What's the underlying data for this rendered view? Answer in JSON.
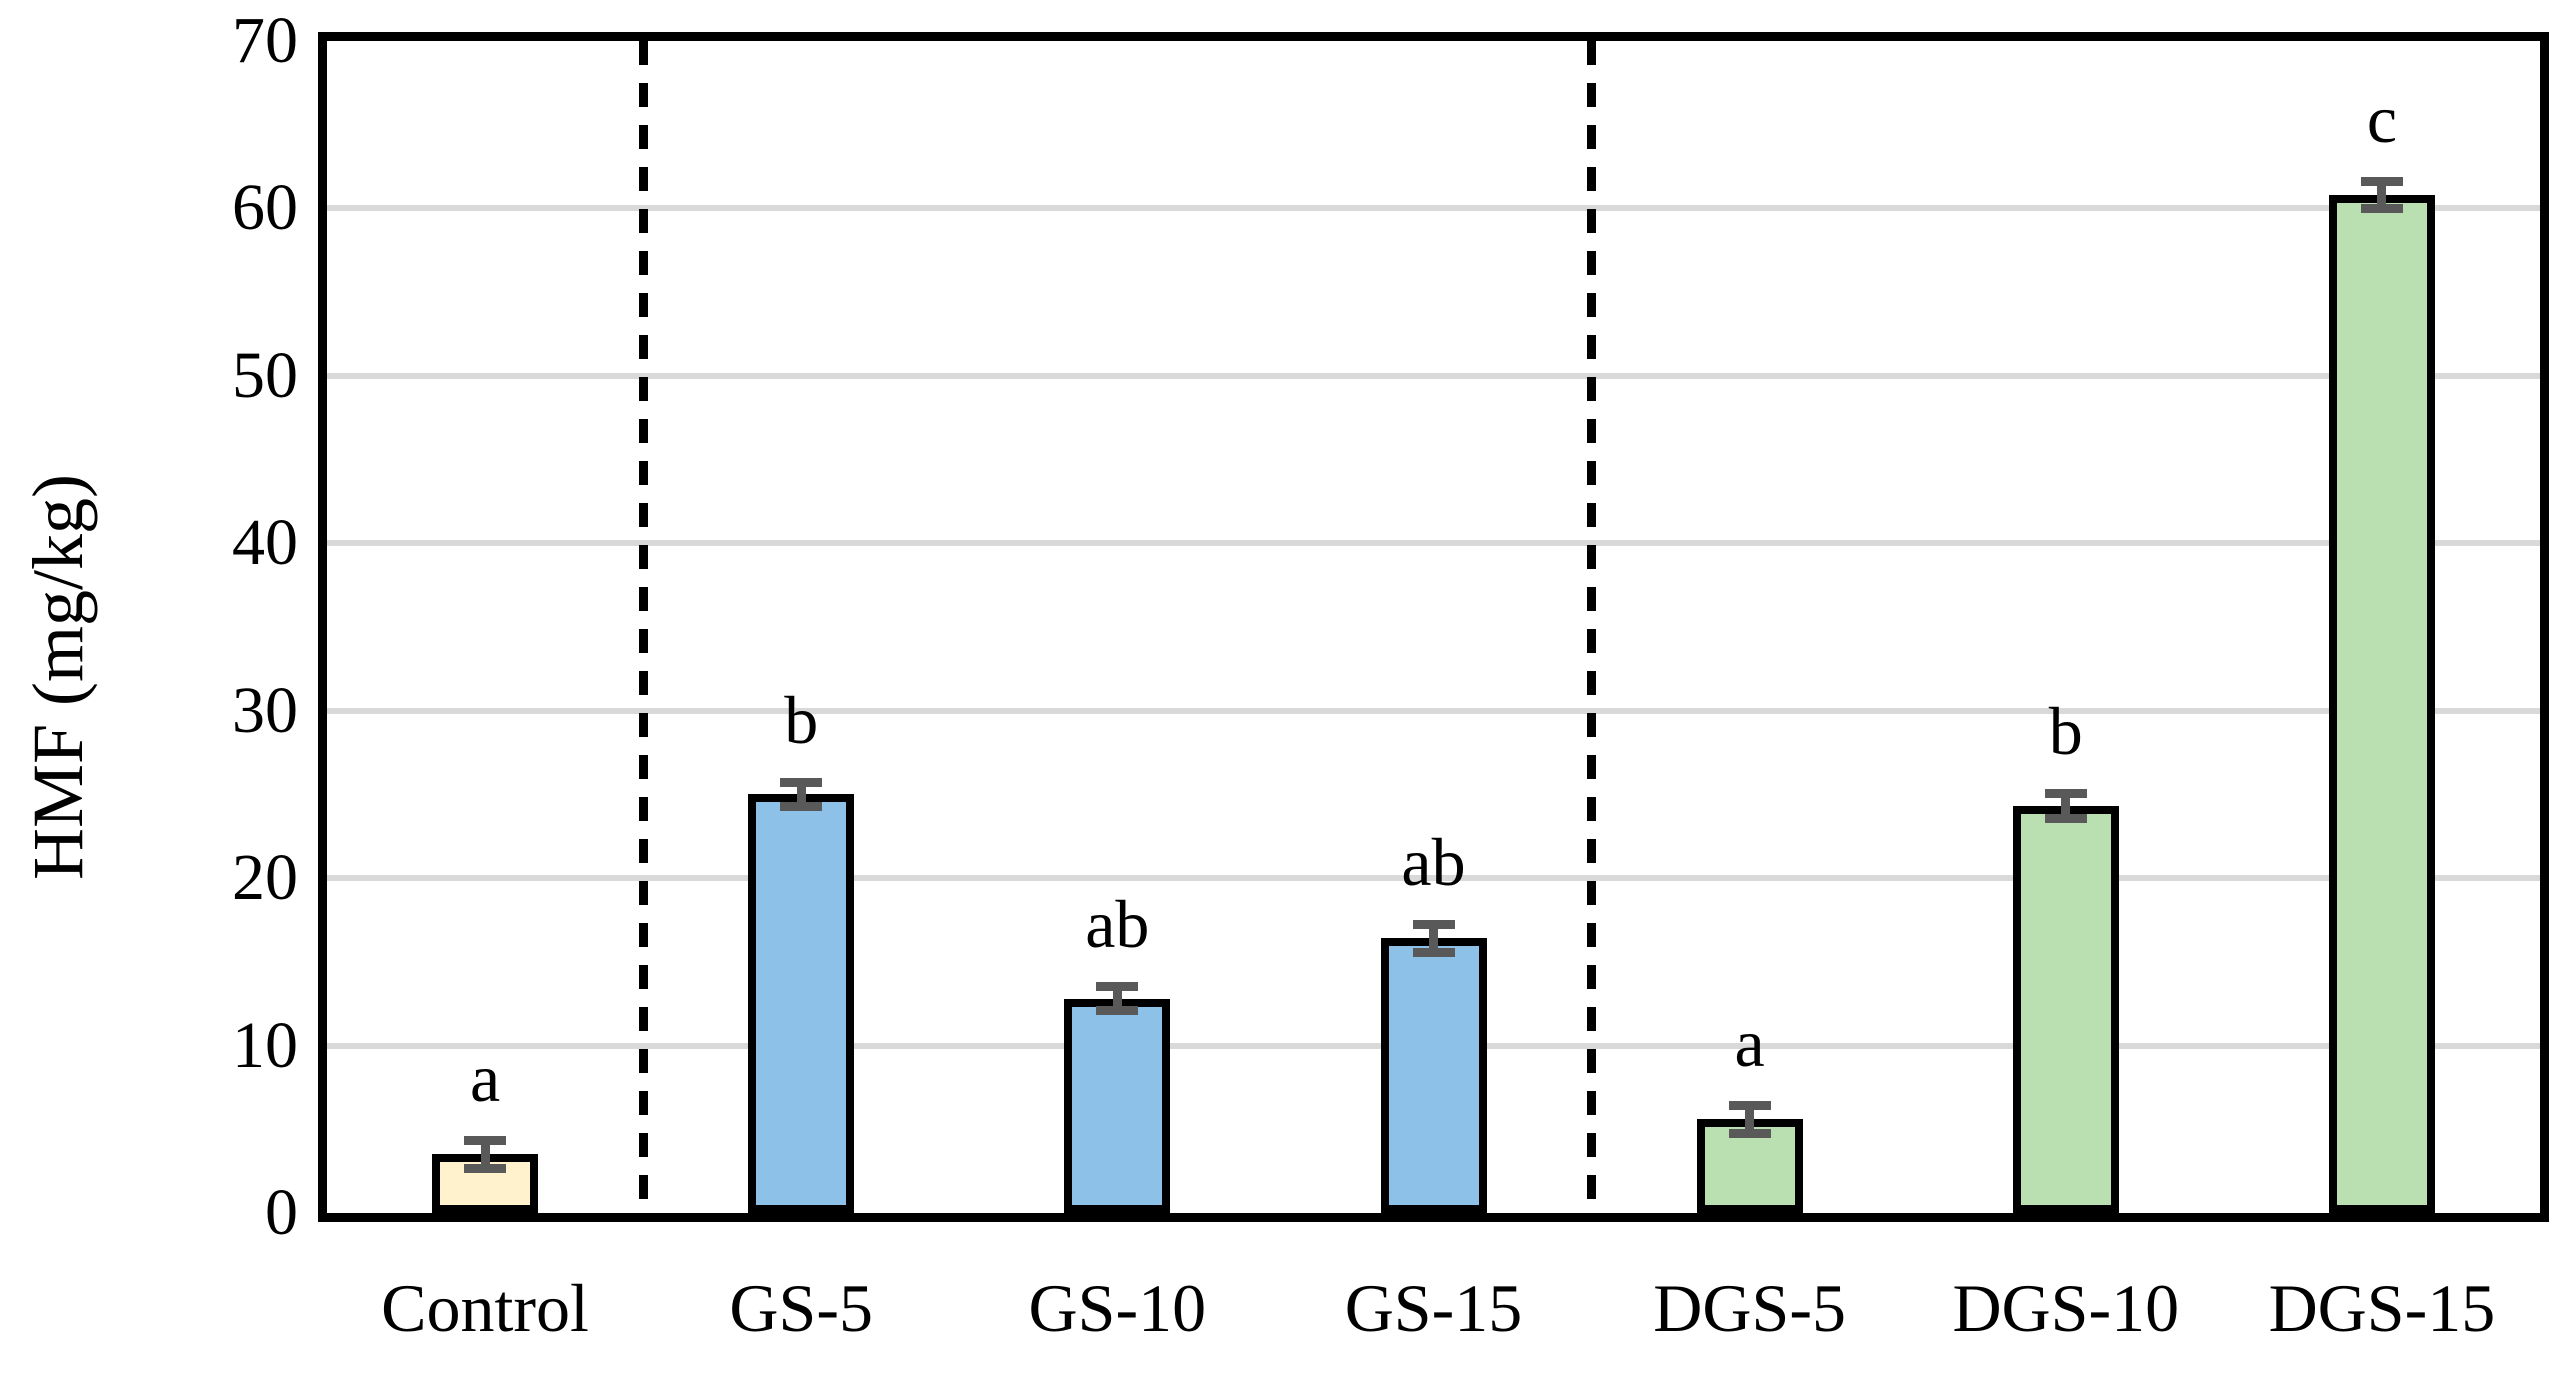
{
  "chart_data": {
    "type": "bar",
    "title": "",
    "xlabel": "",
    "ylabel": "HMF (mg/kg)",
    "ylim": [
      0,
      70
    ],
    "yticks": [
      0,
      10,
      20,
      30,
      40,
      50,
      60,
      70
    ],
    "grid": "horizontal light-gray gridlines every 10 units",
    "legend_position": "none",
    "categories": [
      "Control",
      "GS-5",
      "GS-10",
      "GS-15",
      "DGS-5",
      "DGS-10",
      "DGS-15"
    ],
    "values": [
      3.5,
      25.0,
      12.8,
      16.4,
      5.6,
      24.3,
      60.8
    ],
    "error_bars": [
      1.1,
      1.0,
      1.0,
      1.1,
      1.1,
      1.0,
      1.1
    ],
    "significance_letters": [
      "a",
      "b",
      "ab",
      "ab",
      "a",
      "b",
      "c"
    ],
    "bar_fill_colors": [
      "#FFF2CC",
      "#8EC1E7",
      "#8EC1E7",
      "#8EC1E7",
      "#BADFB1",
      "#BADFB1",
      "#BADFB1"
    ],
    "bar_border_color": "#000000",
    "error_bar_color": "#595959",
    "gridline_color": "#D9D9D9",
    "dashed_separators_after_categories": [
      "Control",
      "GS-15"
    ]
  }
}
